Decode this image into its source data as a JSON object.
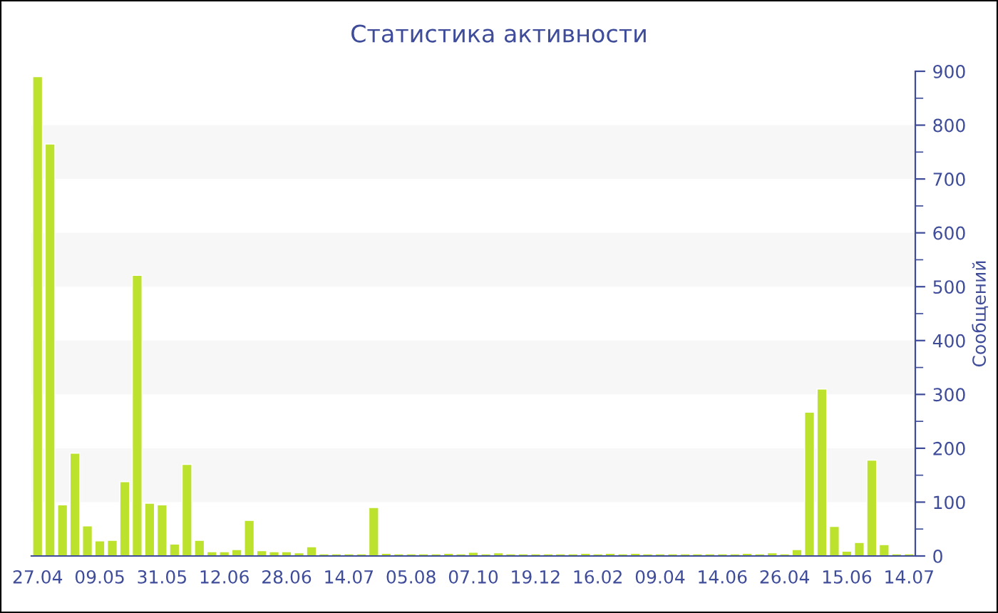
{
  "chart_data": {
    "type": "bar",
    "title": "Статистика активности",
    "ylabel": "Сообщений",
    "categories": [
      "27.04",
      null,
      null,
      null,
      null,
      "09.05",
      null,
      null,
      null,
      null,
      "31.05",
      null,
      null,
      null,
      null,
      "12.06",
      null,
      null,
      null,
      null,
      "28.06",
      null,
      null,
      null,
      null,
      "14.07",
      null,
      null,
      null,
      null,
      "05.08",
      null,
      null,
      null,
      null,
      "07.10",
      null,
      null,
      null,
      null,
      "19.12",
      null,
      null,
      null,
      null,
      "16.02",
      null,
      null,
      null,
      null,
      "09.04",
      null,
      null,
      null,
      null,
      "14.06",
      null,
      null,
      null,
      null,
      "26.04",
      null,
      null,
      null,
      null,
      "15.06",
      null,
      null,
      null,
      null,
      "14.07"
    ],
    "values": [
      890,
      765,
      95,
      191,
      56,
      28,
      29,
      138,
      521,
      98,
      95,
      22,
      170,
      29,
      8,
      8,
      12,
      66,
      10,
      8,
      8,
      6,
      17,
      4,
      4,
      4,
      4,
      90,
      5,
      4,
      4,
      4,
      4,
      5,
      4,
      7,
      4,
      6,
      4,
      4,
      4,
      4,
      4,
      4,
      5,
      4,
      5,
      4,
      5,
      4,
      4,
      4,
      4,
      4,
      4,
      4,
      4,
      5,
      4,
      6,
      4,
      12,
      267,
      310,
      55,
      9,
      25,
      178,
      21,
      4,
      4
    ],
    "color": "#bde22e",
    "ylim": [
      0,
      900
    ],
    "yticks": [
      0,
      100,
      200,
      300,
      400,
      500,
      600,
      700,
      800,
      900
    ],
    "bands": [
      {
        "axis": "y",
        "from": 100,
        "to": 200,
        "color": "#f7f7f7"
      },
      {
        "axis": "y",
        "from": 300,
        "to": 400,
        "color": "#f7f7f7"
      },
      {
        "axis": "y",
        "from": 500,
        "to": 600,
        "color": "#f7f7f7"
      },
      {
        "axis": "y",
        "from": 700,
        "to": 800,
        "color": "#f7f7f7"
      }
    ],
    "grid": false,
    "legend": false
  }
}
